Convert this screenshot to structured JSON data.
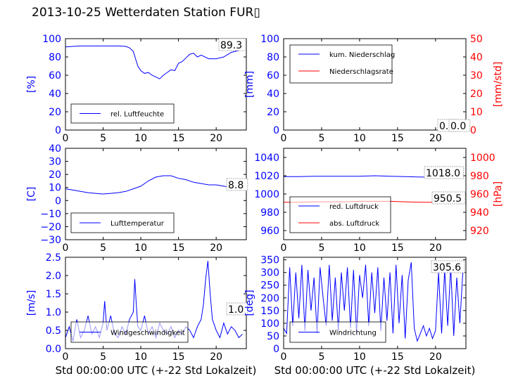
{
  "title": "2013-10-25 Wetterdaten Station FUR",
  "title_glyph": "▯",
  "colors": {
    "blue": "#0000ff",
    "red": "#ff0000",
    "black": "#000000",
    "bg": "#ffffff"
  },
  "chart_data": [
    {
      "id": "p1",
      "type": "line",
      "xlabel": "",
      "ylabel": "[%]",
      "ylabel_color": "#0000ff",
      "xlim": [
        0,
        24
      ],
      "ylim": [
        0,
        100
      ],
      "xticks": [
        "0",
        "5",
        "10",
        "15",
        "20"
      ],
      "yticks": [
        "0",
        "20",
        "40",
        "60",
        "80",
        "100"
      ],
      "annotations": [
        "89.3"
      ],
      "legend": {
        "placement": "lower-left",
        "entries": [
          "rel. Luftfeuchte"
        ]
      },
      "series": [
        {
          "name": "rel. Luftfeuchte",
          "color": "#0000ff",
          "x": [
            0,
            1,
            2,
            3,
            4,
            5,
            6,
            7,
            8,
            8.5,
            9,
            9.3,
            9.6,
            10,
            10.5,
            11,
            11.5,
            12,
            12.5,
            13,
            13.5,
            14,
            14.5,
            15,
            15.5,
            16,
            16.5,
            17,
            17.5,
            18,
            19,
            20,
            21,
            22,
            23,
            23.5
          ],
          "y": [
            91,
            91.5,
            92,
            92,
            92,
            92,
            92,
            92,
            91.5,
            90,
            86,
            78,
            70,
            65,
            62,
            63,
            60,
            58,
            56,
            60,
            63,
            66,
            65,
            73,
            75,
            79,
            83,
            84,
            80,
            82,
            78,
            78,
            80,
            85,
            87,
            89.3
          ]
        }
      ]
    },
    {
      "id": "p2",
      "type": "line",
      "xlabel": "",
      "ylabel": "[mm]",
      "ylabel_color": "#0000ff",
      "ylabel_right": "[mm/std]",
      "ylabel_right_color": "#ff0000",
      "xlim": [
        0,
        24
      ],
      "ylim": [
        0,
        100
      ],
      "ylim_right": [
        0,
        50
      ],
      "xticks": [
        "0",
        "5",
        "10",
        "15",
        "20"
      ],
      "yticks": [
        "0",
        "20",
        "40",
        "60",
        "80",
        "100"
      ],
      "yticks_right": [
        "0",
        "10",
        "20",
        "30",
        "40",
        "50"
      ],
      "annotations": [
        "0.0",
        "0.0"
      ],
      "legend": {
        "placement": "upper-left",
        "entries": [
          "kum. Niederschlag",
          "Niederschlagsrate"
        ]
      },
      "series": [
        {
          "name": "kum. Niederschlag",
          "color": "#0000ff",
          "axis": "left",
          "x": [
            0,
            24
          ],
          "y": [
            0,
            0
          ]
        },
        {
          "name": "Niederschlagsrate",
          "color": "#ff0000",
          "axis": "right",
          "x": [
            0,
            24
          ],
          "y": [
            0,
            0
          ]
        }
      ]
    },
    {
      "id": "p3",
      "type": "line",
      "xlabel": "",
      "ylabel": "[C]",
      "ylabel_color": "#0000ff",
      "xlim": [
        0,
        24
      ],
      "ylim": [
        -30,
        40
      ],
      "xticks": [
        "0",
        "5",
        "10",
        "15",
        "20"
      ],
      "yticks": [
        "−30",
        "−20",
        "−10",
        "0",
        "10",
        "20",
        "30",
        "40"
      ],
      "annotations": [
        "8.8"
      ],
      "legend": {
        "placement": "lower-left",
        "entries": [
          "Lufttemperatur"
        ]
      },
      "series": [
        {
          "name": "Lufttemperatur",
          "color": "#0000ff",
          "x": [
            0,
            1,
            2,
            3,
            4,
            5,
            6,
            7,
            8,
            9,
            10,
            11,
            12,
            13,
            14,
            15,
            16,
            17,
            18,
            19,
            20,
            21,
            22,
            23,
            23.5
          ],
          "y": [
            9,
            8,
            7,
            6,
            5.5,
            5,
            5.5,
            6,
            7,
            9,
            11,
            15,
            18,
            19,
            19,
            17,
            16,
            14,
            13,
            12,
            12,
            11,
            10,
            9,
            8.8
          ]
        }
      ]
    },
    {
      "id": "p4",
      "type": "line",
      "xlabel": "",
      "ylabel": "",
      "ylabel_right": "[hPa]",
      "ylabel_right_color": "#ff0000",
      "xlim": [
        0,
        24
      ],
      "ylim": [
        950,
        1050
      ],
      "ylim_right": [
        910,
        1010
      ],
      "xticks": [
        "0",
        "5",
        "10",
        "15",
        "20"
      ],
      "yticks": [
        "960",
        "980",
        "1000",
        "1020",
        "1040"
      ],
      "yticks_right": [
        "920",
        "940",
        "960",
        "980",
        "1000"
      ],
      "annotations": [
        "1018.0",
        "950.5"
      ],
      "legend": {
        "placement": "lower-left",
        "entries": [
          "red. Luftdruck",
          "abs. Luftdruck"
        ]
      },
      "series": [
        {
          "name": "red. Luftdruck",
          "color": "#0000ff",
          "axis": "left",
          "x": [
            0,
            2,
            4,
            6,
            8,
            10,
            12,
            14,
            16,
            18,
            20,
            22,
            23.5
          ],
          "y": [
            1019,
            1019,
            1019.5,
            1019.5,
            1019.5,
            1019.5,
            1020,
            1019.5,
            1019,
            1018.5,
            1018.5,
            1018,
            1018
          ]
        },
        {
          "name": "abs. Luftdruck",
          "color": "#ff0000",
          "axis": "right",
          "x": [
            0,
            2,
            4,
            6,
            8,
            10,
            12,
            14,
            16,
            18,
            20,
            22,
            23.5
          ],
          "y": [
            951,
            951,
            951.5,
            951.5,
            951.5,
            952,
            952,
            952,
            951.5,
            951,
            951,
            950.5,
            950.5
          ]
        }
      ]
    },
    {
      "id": "p5",
      "type": "line",
      "xlabel": "Std 00:00:00 UTC (+-22 Std Lokalzeit)",
      "ylabel": "[m/s]",
      "ylabel_color": "#0000ff",
      "xlim": [
        0,
        24
      ],
      "ylim": [
        0,
        2.5
      ],
      "xticks": [
        "0",
        "5",
        "10",
        "15",
        "20"
      ],
      "yticks": [
        "0.0",
        "0.5",
        "1.0",
        "1.5",
        "2.0",
        "2.5"
      ],
      "annotations": [
        "1.0"
      ],
      "legend": {
        "placement": "lower-left",
        "entries": [
          "Windgeschwindigkeit"
        ]
      },
      "series": [
        {
          "name": "Windgeschwindigkeit",
          "color": "#0000ff",
          "x": [
            0,
            0.5,
            1,
            1.5,
            2,
            2.5,
            3,
            3.5,
            4,
            4.5,
            5,
            5.2,
            5.5,
            6,
            6.5,
            7,
            7.5,
            8,
            8.5,
            9,
            9.2,
            9.4,
            9.6,
            10,
            10.5,
            11,
            11.5,
            12,
            12.5,
            13,
            13.5,
            14,
            14.5,
            15,
            15.5,
            16,
            16.5,
            17,
            17.5,
            18,
            18.3,
            18.6,
            18.9,
            19.2,
            19.5,
            20,
            20.5,
            21,
            21.5,
            22,
            22.5,
            23,
            23.5
          ],
          "y": [
            0.3,
            0.6,
            0.2,
            0.8,
            0.3,
            0.5,
            0.9,
            0.4,
            0.6,
            0.3,
            0.7,
            1.3,
            0.5,
            0.9,
            0.4,
            0.3,
            0.6,
            0.4,
            0.8,
            1.0,
            1.9,
            1.2,
            0.6,
            0.5,
            0.9,
            0.4,
            0.6,
            0.3,
            0.7,
            0.5,
            0.4,
            0.6,
            0.3,
            0.5,
            0.4,
            0.6,
            0.5,
            0.3,
            0.6,
            0.8,
            1.2,
            1.9,
            2.4,
            1.5,
            0.8,
            0.5,
            0.3,
            0.7,
            0.4,
            0.6,
            0.5,
            0.3,
            0.4
          ]
        }
      ]
    },
    {
      "id": "p6",
      "type": "line",
      "xlabel": "Std 00:00:00 UTC (+-22 Std Lokalzeit)",
      "ylabel": "[deg]",
      "ylabel_color": "#0000ff",
      "xlim": [
        0,
        24
      ],
      "ylim": [
        0,
        360
      ],
      "xticks": [
        "0",
        "5",
        "10",
        "15",
        "20"
      ],
      "yticks": [
        "0",
        "50",
        "100",
        "150",
        "200",
        "250",
        "300",
        "350"
      ],
      "annotations": [
        "305.6"
      ],
      "legend": {
        "placement": "lower-left",
        "entries": [
          "Windrichtung"
        ]
      },
      "series": [
        {
          "name": "Windrichtung",
          "color": "#0000ff",
          "x": [
            0,
            0.4,
            0.8,
            1.2,
            1.6,
            2,
            2.4,
            2.8,
            3.2,
            3.6,
            4,
            4.4,
            4.8,
            5.2,
            5.6,
            6,
            6.4,
            6.8,
            7.2,
            7.6,
            8,
            8.4,
            8.8,
            9.2,
            9.6,
            10,
            10.4,
            10.8,
            11.2,
            11.6,
            12,
            12.4,
            12.8,
            13.2,
            13.6,
            14,
            14.4,
            14.8,
            15.2,
            15.6,
            16,
            16.4,
            16.8,
            17.2,
            17.6,
            18,
            18.4,
            18.8,
            19.2,
            19.6,
            20,
            20.4,
            20.8,
            21.2,
            21.6,
            22,
            22.4,
            22.8,
            23.2,
            23.6
          ],
          "y": [
            80,
            60,
            320,
            90,
            300,
            120,
            330,
            70,
            310,
            150,
            280,
            60,
            320,
            200,
            90,
            330,
            110,
            280,
            70,
            300,
            150,
            320,
            80,
            310,
            60,
            290,
            200,
            330,
            90,
            300,
            140,
            320,
            70,
            280,
            110,
            300,
            60,
            330,
            100,
            290,
            40,
            270,
            340,
            80,
            30,
            60,
            90,
            50,
            80,
            40,
            70,
            300,
            60,
            310,
            90,
            320,
            50,
            280,
            100,
            305.6
          ]
        }
      ]
    }
  ]
}
